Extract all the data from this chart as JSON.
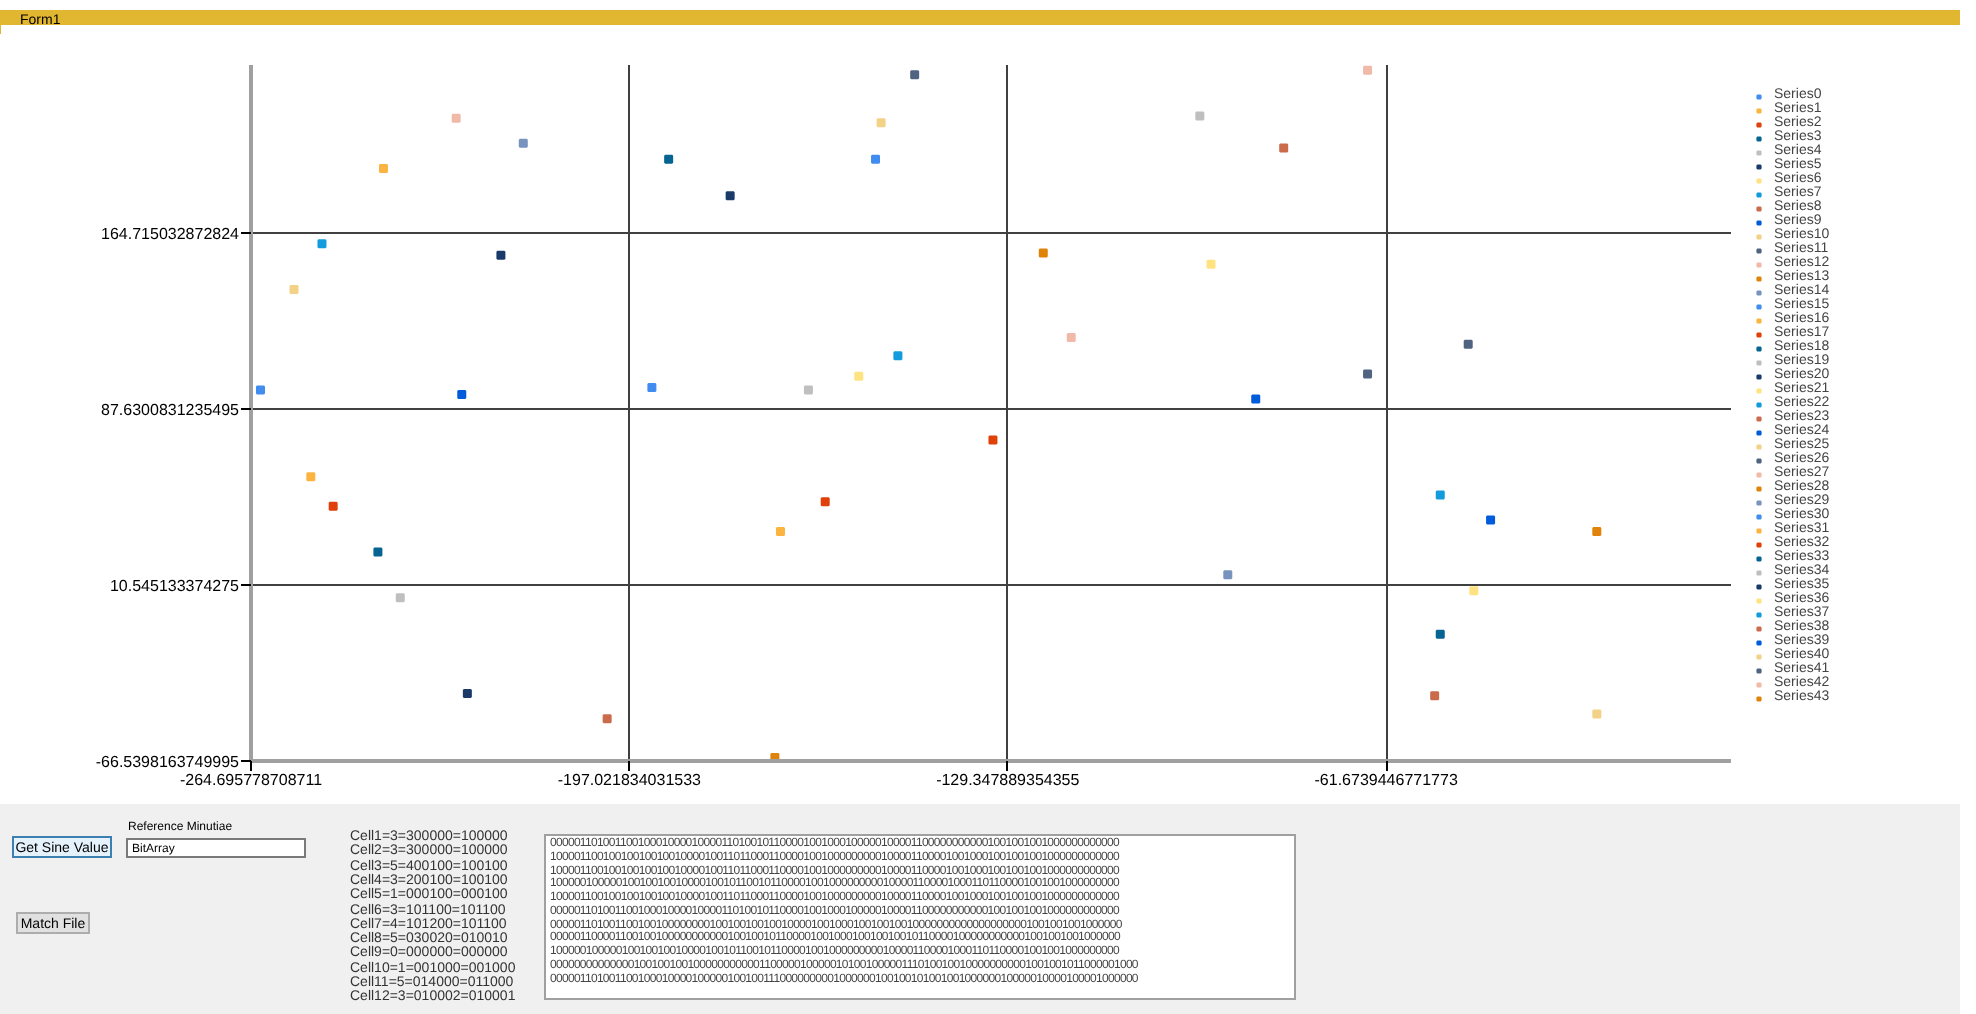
{
  "chart_data": {
    "type": "scatter",
    "marker": "square",
    "grid": true,
    "legend": "right",
    "xlim": [
      -264.695778708711,
      0
    ],
    "ylim": [
      -66.5398163749995,
      238.3
    ],
    "xticks": [
      -264.695778708711,
      -197.021834031533,
      -129.347889354355,
      -61.6739446771773
    ],
    "yticks": [
      -66.5398163749995,
      10.545133374275,
      87.6300831235495,
      164.715032872824
    ],
    "series": [
      {
        "name": "Series0",
        "color": "#418cf0",
        "x": [
          -263
        ],
        "values": [
          96
        ]
      },
      {
        "name": "Series1",
        "color": "#fcb441",
        "x": [
          -241
        ],
        "values": [
          193
        ]
      },
      {
        "name": "Series2",
        "color": "#e0400a",
        "x": [
          -250
        ],
        "values": [
          45
        ]
      },
      {
        "name": "Series3",
        "color": "#056492",
        "x": [
          -242
        ],
        "values": [
          25
        ]
      },
      {
        "name": "Series4",
        "color": "#bfbfbf",
        "x": [
          -238
        ],
        "values": [
          5
        ]
      },
      {
        "name": "Series5",
        "color": "#1a3b69",
        "x": [
          -220
        ],
        "values": [
          155
        ]
      },
      {
        "name": "Series6",
        "color": "#ffe382",
        "x": [
          -156
        ],
        "values": [
          102
        ]
      },
      {
        "name": "Series7",
        "color": "#129cdd",
        "x": [
          -252
        ],
        "values": [
          160
        ]
      },
      {
        "name": "Series8",
        "color": "#ca6b4b",
        "x": [
          -201
        ],
        "values": [
          -48
        ]
      },
      {
        "name": "Series9",
        "color": "#005cdb",
        "x": [
          -227
        ],
        "values": [
          94
        ]
      },
      {
        "name": "Series10",
        "color": "#f3d288",
        "x": [
          -257
        ],
        "values": [
          140
        ]
      },
      {
        "name": "Series11",
        "color": "#506381",
        "x": [
          -146
        ],
        "values": [
          234
        ]
      },
      {
        "name": "Series12",
        "color": "#f1b9a8",
        "x": [
          -228
        ],
        "values": [
          215
        ]
      },
      {
        "name": "Series13",
        "color": "#e0830a",
        "x": [
          -171
        ],
        "values": [
          -65
        ]
      },
      {
        "name": "Series14",
        "color": "#7893be",
        "x": [
          -216
        ],
        "values": [
          204
        ]
      },
      {
        "name": "Series15",
        "color": "#418cf0",
        "x": [
          -153
        ],
        "values": [
          197
        ]
      },
      {
        "name": "Series16",
        "color": "#fcb441",
        "x": [
          -254
        ],
        "values": [
          58
        ]
      },
      {
        "name": "Series17",
        "color": "#e0400a",
        "x": [
          -162
        ],
        "values": [
          47
        ]
      },
      {
        "name": "Series18",
        "color": "#056492",
        "x": [
          -190
        ],
        "values": [
          197
        ]
      },
      {
        "name": "Series19",
        "color": "#bfbfbf",
        "x": [
          -165
        ],
        "values": [
          96
        ]
      },
      {
        "name": "Series20",
        "color": "#1a3b69",
        "x": [
          -179
        ],
        "values": [
          181
        ]
      },
      {
        "name": "Series21",
        "color": "#ffe382",
        "x": [
          -46
        ],
        "values": [
          8
        ]
      },
      {
        "name": "Series22",
        "color": "#129cdd",
        "x": [
          -149
        ],
        "values": [
          111
        ]
      },
      {
        "name": "Series23",
        "color": "#ca6b4b",
        "x": [
          -80
        ],
        "values": [
          202
        ]
      },
      {
        "name": "Series24",
        "color": "#005cdb",
        "x": [
          -43
        ],
        "values": [
          39
        ]
      },
      {
        "name": "Series25",
        "color": "#f3d288",
        "x": [
          -152
        ],
        "values": [
          213
        ]
      },
      {
        "name": "Series26",
        "color": "#506381",
        "x": [
          -47
        ],
        "values": [
          116
        ]
      },
      {
        "name": "Series27",
        "color": "#f1b9a8",
        "x": [
          -65
        ],
        "values": [
          236
        ]
      },
      {
        "name": "Series28",
        "color": "#e0830a",
        "x": [
          -123
        ],
        "values": [
          156
        ]
      },
      {
        "name": "Series29",
        "color": "#7893be",
        "x": [
          -90
        ],
        "values": [
          15
        ]
      },
      {
        "name": "Series30",
        "color": "#418cf0",
        "x": [
          -193
        ],
        "values": [
          97
        ]
      },
      {
        "name": "Series31",
        "color": "#fcb441",
        "x": [
          -170
        ],
        "values": [
          34
        ]
      },
      {
        "name": "Series32",
        "color": "#e0400a",
        "x": [
          -132
        ],
        "values": [
          74
        ]
      },
      {
        "name": "Series33",
        "color": "#056492",
        "x": [
          -52
        ],
        "values": [
          -11
        ]
      },
      {
        "name": "Series34",
        "color": "#bfbfbf",
        "x": [
          -95
        ],
        "values": [
          216
        ]
      },
      {
        "name": "Series35",
        "color": "#1a3b69",
        "x": [
          -226
        ],
        "values": [
          -37
        ]
      },
      {
        "name": "Series36",
        "color": "#ffe382",
        "x": [
          -93
        ],
        "values": [
          151
        ]
      },
      {
        "name": "Series37",
        "color": "#129cdd",
        "x": [
          -52
        ],
        "values": [
          50
        ]
      },
      {
        "name": "Series38",
        "color": "#ca6b4b",
        "x": [
          -53
        ],
        "values": [
          -38
        ]
      },
      {
        "name": "Series39",
        "color": "#005cdb",
        "x": [
          -85
        ],
        "values": [
          92
        ]
      },
      {
        "name": "Series40",
        "color": "#f3d288",
        "x": [
          -24
        ],
        "values": [
          -46
        ]
      },
      {
        "name": "Series41",
        "color": "#506381",
        "x": [
          -65
        ],
        "values": [
          103
        ]
      },
      {
        "name": "Series42",
        "color": "#f1b9a8",
        "x": [
          -118
        ],
        "values": [
          119
        ]
      },
      {
        "name": "Series43",
        "color": "#e0830a",
        "x": [
          -24
        ],
        "values": [
          34
        ]
      }
    ],
    "annotations": [
      "Form1",
      "Get Sine Value",
      "Reference Minutiae",
      "BitArray",
      "Match File",
      "Cell1=3=300000=100000",
      "Cell2=3=300000=100000",
      "Cell3=5=400100=100100",
      "Cell4=3=200100=100100",
      "Cell5=1=000100=000100",
      "Cell6=3=101100=101100",
      "Cell7=4=101200=101100",
      "Cell8=5=030020=010010",
      "Cell9=0=000000=000000",
      "Cell10=1=001000=001000",
      "Cell11=5=014000=011000",
      "Cell12=3=010002=010001",
      "000001101001100100010000100001101001011000010010001000001000011000000000001001001001000000000000",
      "100001100100100100100100001001101100011000010010000000001000011000010010001001001001000000000000",
      "100001100100100100100100001001101100011000010010000000001000011000010010001001001001000000000000",
      "100000100000100100100100001001011001011000010010000000001000011000010001101100001001001000000000",
      "100001100100100100100100001001101100011000010010000000001000011000010010001001001001000000000000",
      "000001101001100100010000100001101001011000010010001000001000011000000000001001001001000000000000",
      "000001101001100100100000000100100100100100001001000100100100100000000000000000001001001001000000",
      "000001100001100100100000000000100100101100001001000100100100101100001000000000001001001001000000",
      "100000100000100100100100001001011001011000010010000000001000011000010001101100001001001000000000",
      "000000000000001001001001000000000001100000100000101001000001110100100100000000001001001011000001000",
      "000001101001100100010000100000100100111000000000100000010010010100100100000010000010000100001000000"
    ]
  }
}
